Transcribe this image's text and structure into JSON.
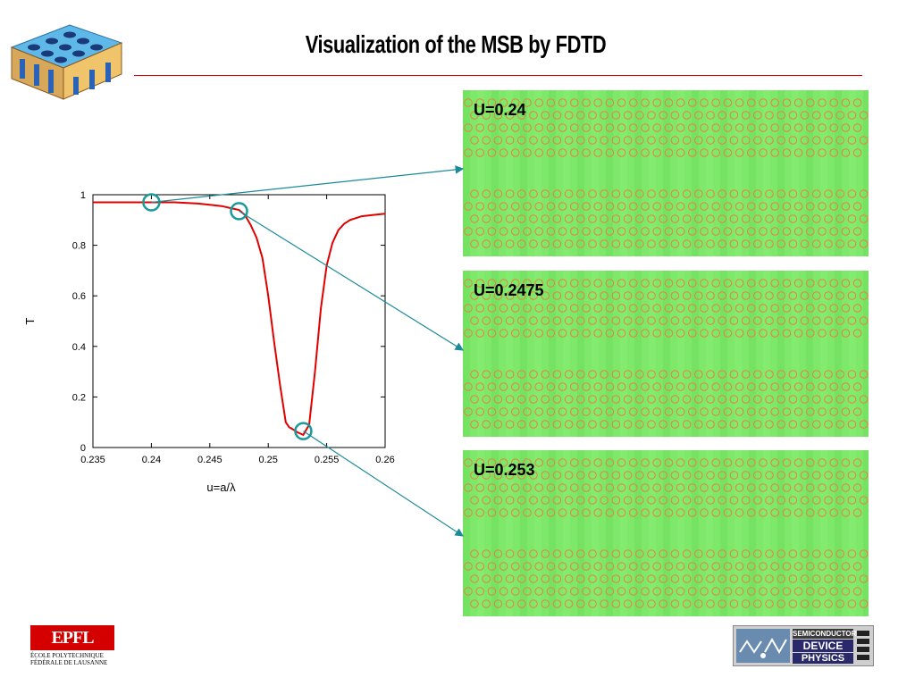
{
  "slide": {
    "title": "Visualization of the MSB by FDTD"
  },
  "chart_data": {
    "type": "line",
    "xlabel": "u=a/λ",
    "ylabel": "T",
    "xlim": [
      0.235,
      0.26
    ],
    "ylim": [
      0,
      1
    ],
    "x_ticks": [
      "0.235",
      "0.24",
      "0.245",
      "0.25",
      "0.255",
      "0.26"
    ],
    "y_ticks": [
      "0",
      "0.2",
      "0.4",
      "0.6",
      "0.8",
      "1"
    ],
    "line_color": "#e00000",
    "series": [
      {
        "x": [
          0.235,
          0.238,
          0.24,
          0.242,
          0.244,
          0.245,
          0.246,
          0.247,
          0.2475,
          0.248,
          0.2485,
          0.249,
          0.2495,
          0.25,
          0.2505,
          0.251,
          0.2515,
          0.2518,
          0.252,
          0.2525,
          0.253,
          0.2535,
          0.254,
          0.2545,
          0.255,
          0.2555,
          0.256,
          0.2565,
          0.257,
          0.258,
          0.259,
          0.26
        ],
        "y": [
          0.97,
          0.97,
          0.97,
          0.97,
          0.965,
          0.96,
          0.955,
          0.945,
          0.94,
          0.92,
          0.88,
          0.83,
          0.75,
          0.6,
          0.42,
          0.25,
          0.1,
          0.08,
          0.075,
          0.06,
          0.05,
          0.09,
          0.3,
          0.55,
          0.72,
          0.81,
          0.86,
          0.885,
          0.9,
          0.915,
          0.92,
          0.925
        ]
      }
    ],
    "markers": [
      {
        "x": 0.24,
        "y": 0.97
      },
      {
        "x": 0.2475,
        "y": 0.935
      },
      {
        "x": 0.253,
        "y": 0.065
      }
    ],
    "marker_color": "#1a9a9a"
  },
  "panels": [
    {
      "label": "U=0.24"
    },
    {
      "label": "U=0.2475"
    },
    {
      "label": "U=0.253"
    }
  ],
  "colors": {
    "panel_background": "#7de86a",
    "hole_ring": "#e8823a",
    "connector": "#1a8a9a",
    "title_rule": "#d40000"
  },
  "logos": {
    "epfl_mark": "EPFL",
    "epfl_line1": "ÉCOLE POLYTECHNIQUE",
    "epfl_line2": "FÉDÉRALE DE LAUSANNE",
    "sdp_line1": "SEMICONDUCTOR",
    "sdp_line2": "DEVICE",
    "sdp_line3": "PHYSICS"
  }
}
